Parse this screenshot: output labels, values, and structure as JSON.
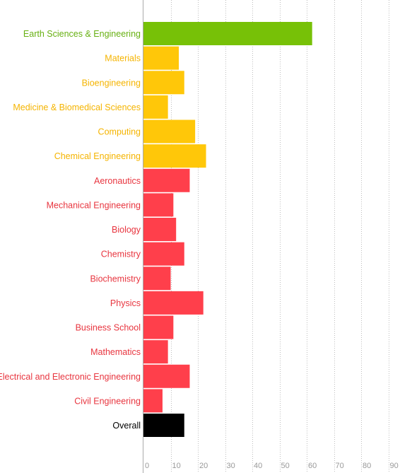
{
  "chart_data": {
    "type": "bar",
    "orientation": "horizontal",
    "categories": [
      "Earth Sciences & Engineering",
      "Materials",
      "Bioengineering",
      "Medicine & Biomedical Sciences",
      "Computing",
      "Chemical Engineering",
      "Aeronautics",
      "Mechanical Engineering",
      "Biology",
      "Chemistry",
      "Biochemistry",
      "Physics",
      "Business School",
      "Mathematics",
      "Electrical and Electronic Engineering",
      "Civil Engineering",
      "Overall"
    ],
    "values": [
      62,
      13,
      15,
      9,
      19,
      23,
      17,
      11,
      12,
      15,
      10,
      22,
      11,
      9,
      17,
      7,
      15
    ],
    "bar_colors": [
      "#77c107",
      "#ffc709",
      "#ffc709",
      "#ffc709",
      "#ffc709",
      "#ffc709",
      "#ff3f4b",
      "#ff3f4b",
      "#ff3f4b",
      "#ff3f4b",
      "#ff3f4b",
      "#ff3f4b",
      "#ff3f4b",
      "#ff3f4b",
      "#ff3f4b",
      "#ff3f4b",
      "#000000"
    ],
    "label_colors": [
      "#67b012",
      "#f5b400",
      "#f5b400",
      "#f5b400",
      "#f5b400",
      "#f5b400",
      "#e8353f",
      "#e8353f",
      "#e8353f",
      "#e8353f",
      "#e8353f",
      "#e8353f",
      "#e8353f",
      "#e8353f",
      "#e8353f",
      "#e8353f",
      "#000000"
    ],
    "xticks": [
      0,
      10,
      20,
      30,
      40,
      50,
      60,
      70,
      80,
      90
    ],
    "xlim": [
      0,
      100
    ],
    "grid": true,
    "grid_style": "dotted",
    "title": "",
    "xlabel": "",
    "ylabel": ""
  }
}
